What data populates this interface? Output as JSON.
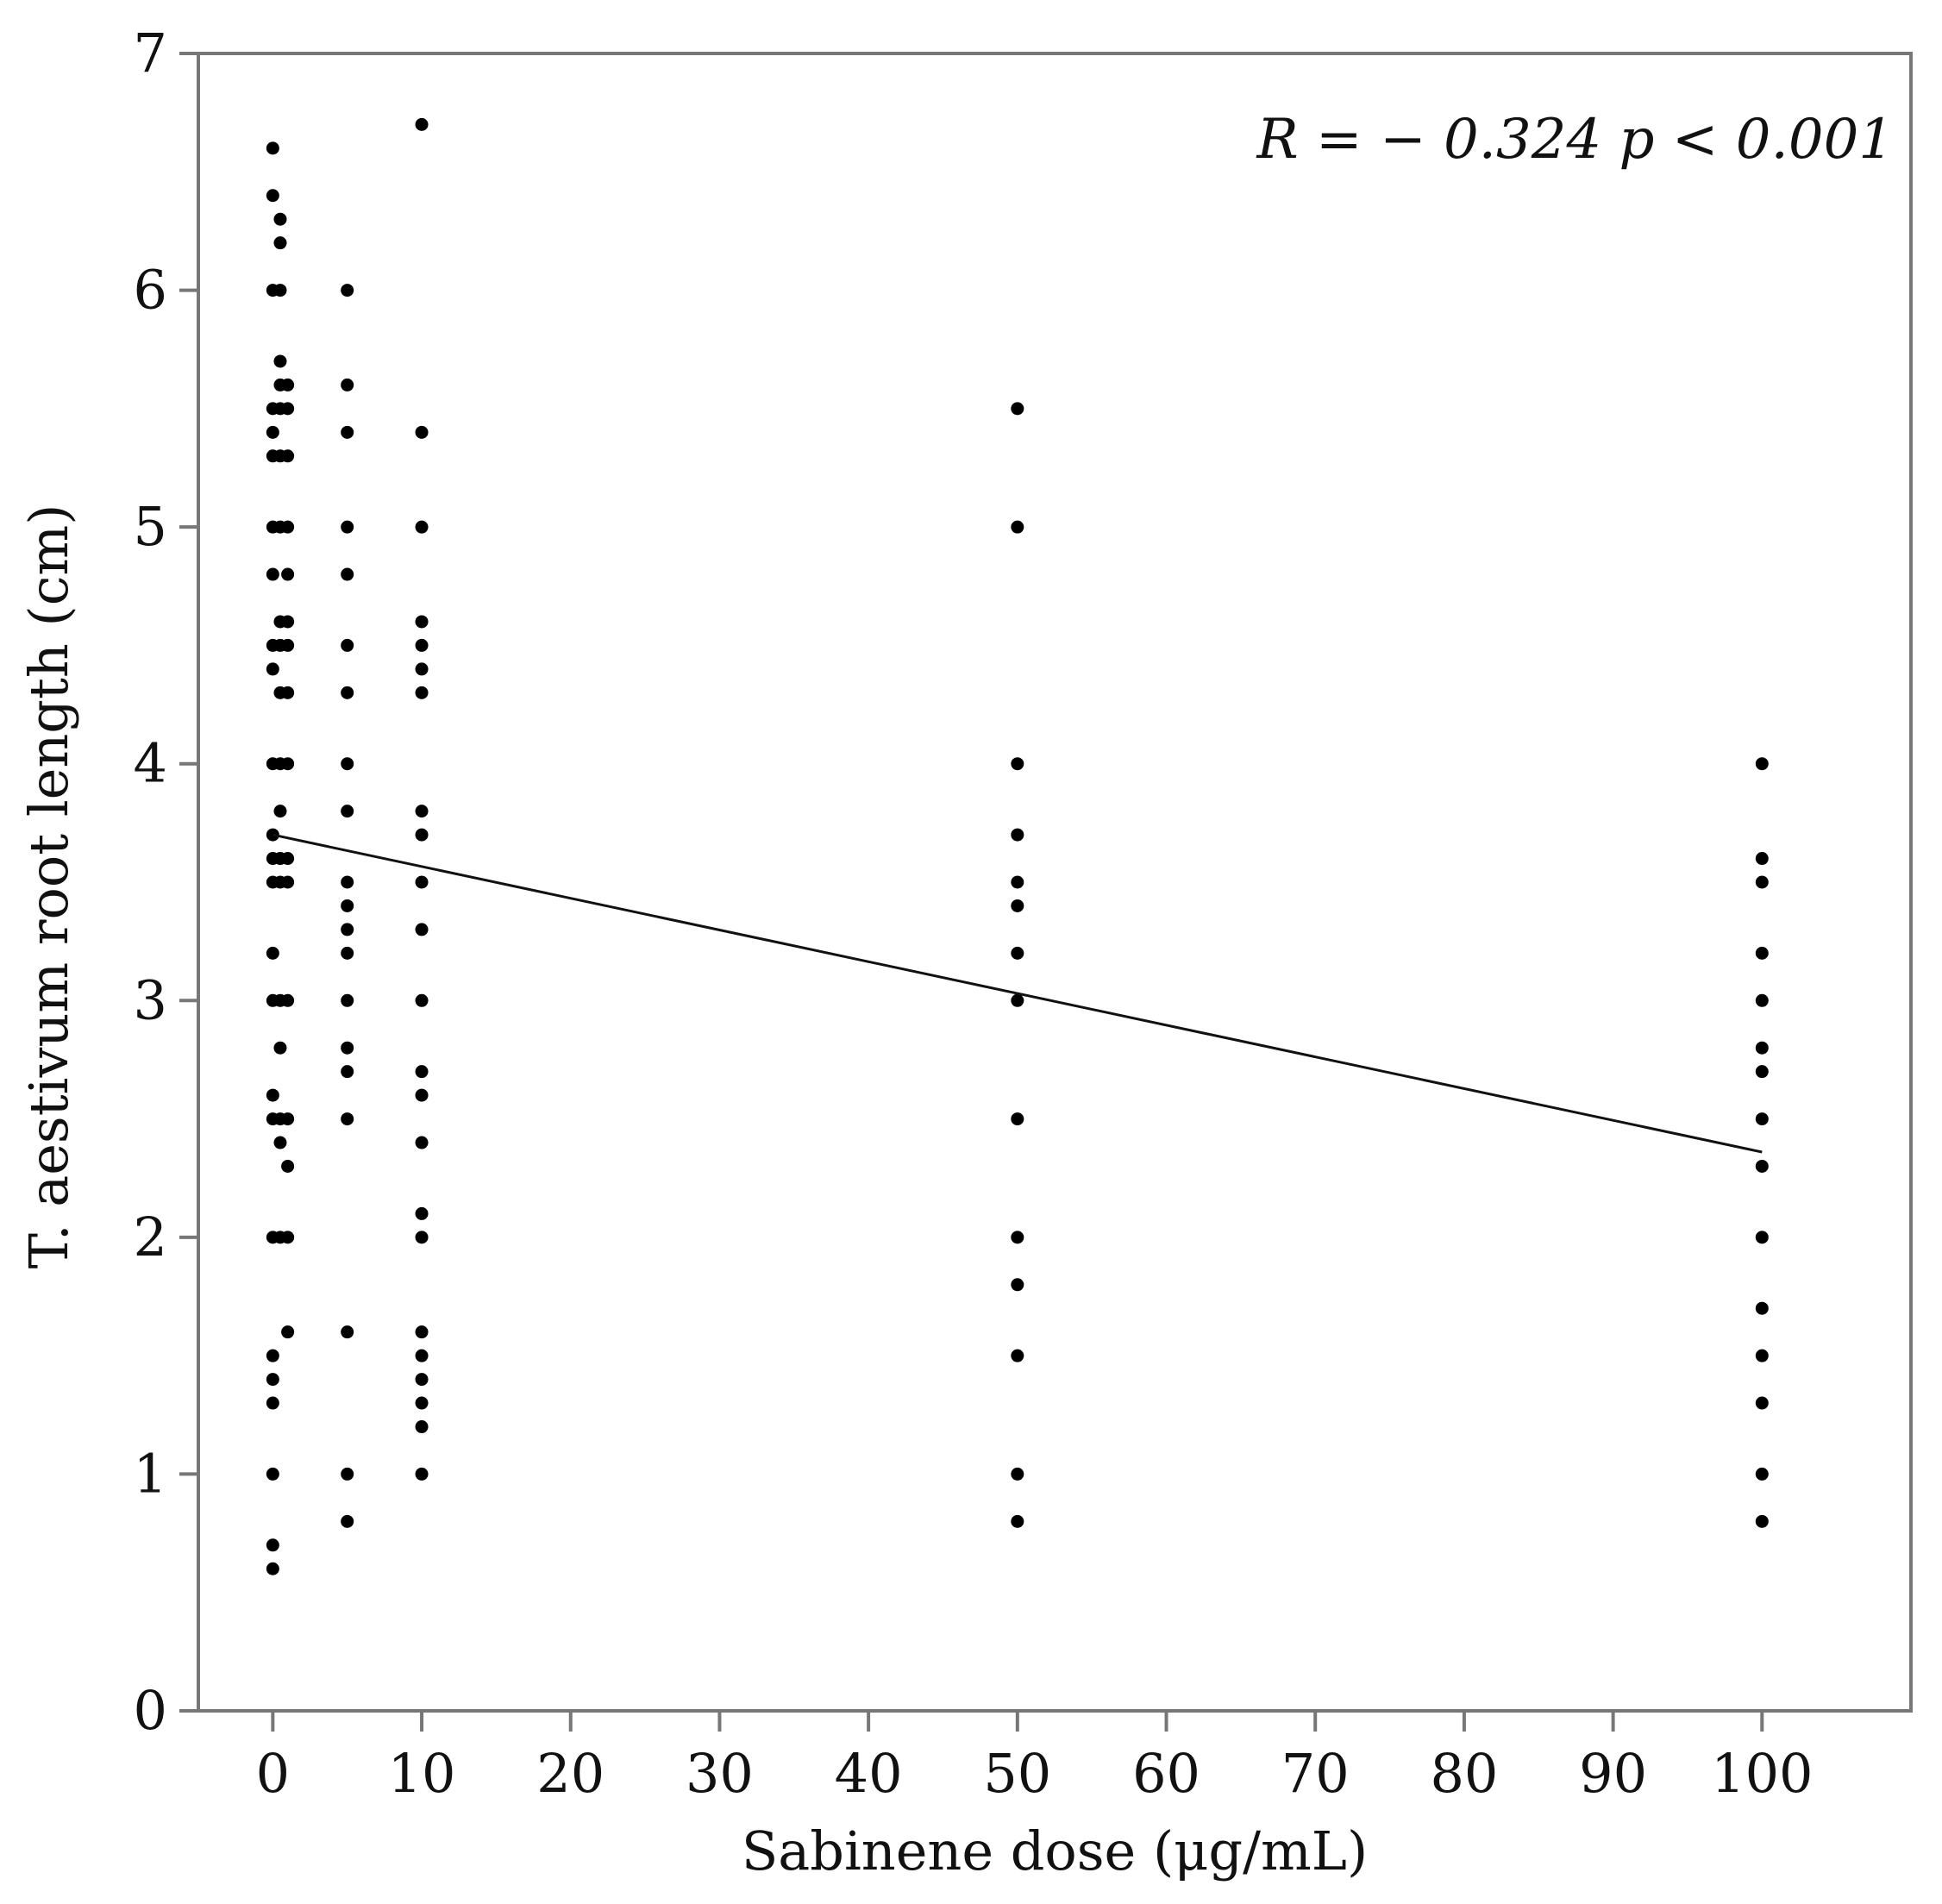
{
  "chart_data": {
    "type": "scatter",
    "title": "",
    "xlabel": "Sabinene dose (μg/mL)",
    "ylabel": "T. aestivum root length (cm)",
    "xlim": [
      -5,
      110
    ],
    "ylim": [
      0,
      7
    ],
    "xticks": [
      0,
      10,
      20,
      30,
      40,
      50,
      60,
      70,
      80,
      90,
      100
    ],
    "yticks": [
      0,
      1,
      2,
      3,
      4,
      5,
      6,
      7
    ],
    "annotation": "R = − 0.324  p < 0.001",
    "grid": false,
    "legend": "none",
    "point_color": "#000000",
    "regression_line": {
      "x": [
        0,
        100
      ],
      "y": [
        3.7,
        2.36
      ]
    },
    "points": [
      {
        "x": 0,
        "y": 6.6
      },
      {
        "x": 0,
        "y": 6.4
      },
      {
        "x": 0,
        "y": 6.0
      },
      {
        "x": 0,
        "y": 5.5
      },
      {
        "x": 0,
        "y": 5.4
      },
      {
        "x": 0,
        "y": 5.3
      },
      {
        "x": 0,
        "y": 5.0
      },
      {
        "x": 0,
        "y": 4.8
      },
      {
        "x": 0,
        "y": 4.5
      },
      {
        "x": 0,
        "y": 4.4
      },
      {
        "x": 0,
        "y": 4.0
      },
      {
        "x": 0,
        "y": 3.7
      },
      {
        "x": 0,
        "y": 3.6
      },
      {
        "x": 0,
        "y": 3.5
      },
      {
        "x": 0,
        "y": 3.2
      },
      {
        "x": 0,
        "y": 3.0
      },
      {
        "x": 0,
        "y": 2.6
      },
      {
        "x": 0,
        "y": 2.5
      },
      {
        "x": 0,
        "y": 2.0
      },
      {
        "x": 0,
        "y": 1.5
      },
      {
        "x": 0,
        "y": 1.4
      },
      {
        "x": 0,
        "y": 1.3
      },
      {
        "x": 0,
        "y": 1.0
      },
      {
        "x": 0,
        "y": 0.7
      },
      {
        "x": 0,
        "y": 0.6
      },
      {
        "x": 0.5,
        "y": 6.3
      },
      {
        "x": 0.5,
        "y": 6.2
      },
      {
        "x": 0.5,
        "y": 6.0
      },
      {
        "x": 0.5,
        "y": 5.7
      },
      {
        "x": 0.5,
        "y": 5.6
      },
      {
        "x": 0.5,
        "y": 5.5
      },
      {
        "x": 0.5,
        "y": 5.3
      },
      {
        "x": 0.5,
        "y": 5.0
      },
      {
        "x": 0.5,
        "y": 4.6
      },
      {
        "x": 0.5,
        "y": 4.5
      },
      {
        "x": 0.5,
        "y": 4.3
      },
      {
        "x": 0.5,
        "y": 4.0
      },
      {
        "x": 0.5,
        "y": 3.8
      },
      {
        "x": 0.5,
        "y": 3.6
      },
      {
        "x": 0.5,
        "y": 3.5
      },
      {
        "x": 0.5,
        "y": 3.0
      },
      {
        "x": 0.5,
        "y": 2.8
      },
      {
        "x": 0.5,
        "y": 2.5
      },
      {
        "x": 0.5,
        "y": 2.4
      },
      {
        "x": 0.5,
        "y": 2.0
      },
      {
        "x": 1,
        "y": 5.6
      },
      {
        "x": 1,
        "y": 5.5
      },
      {
        "x": 1,
        "y": 5.3
      },
      {
        "x": 1,
        "y": 5.0
      },
      {
        "x": 1,
        "y": 4.8
      },
      {
        "x": 1,
        "y": 4.6
      },
      {
        "x": 1,
        "y": 4.5
      },
      {
        "x": 1,
        "y": 4.3
      },
      {
        "x": 1,
        "y": 4.0
      },
      {
        "x": 1,
        "y": 3.6
      },
      {
        "x": 1,
        "y": 3.5
      },
      {
        "x": 1,
        "y": 3.0
      },
      {
        "x": 1,
        "y": 2.5
      },
      {
        "x": 1,
        "y": 2.3
      },
      {
        "x": 1,
        "y": 2.0
      },
      {
        "x": 1,
        "y": 1.6
      },
      {
        "x": 5,
        "y": 6.0
      },
      {
        "x": 5,
        "y": 5.6
      },
      {
        "x": 5,
        "y": 5.4
      },
      {
        "x": 5,
        "y": 5.0
      },
      {
        "x": 5,
        "y": 4.8
      },
      {
        "x": 5,
        "y": 4.5
      },
      {
        "x": 5,
        "y": 4.3
      },
      {
        "x": 5,
        "y": 4.0
      },
      {
        "x": 5,
        "y": 3.8
      },
      {
        "x": 5,
        "y": 3.5
      },
      {
        "x": 5,
        "y": 3.4
      },
      {
        "x": 5,
        "y": 3.3
      },
      {
        "x": 5,
        "y": 3.2
      },
      {
        "x": 5,
        "y": 3.0
      },
      {
        "x": 5,
        "y": 2.8
      },
      {
        "x": 5,
        "y": 2.7
      },
      {
        "x": 5,
        "y": 2.5
      },
      {
        "x": 5,
        "y": 1.6
      },
      {
        "x": 5,
        "y": 1.0
      },
      {
        "x": 5,
        "y": 0.8
      },
      {
        "x": 10,
        "y": 6.7
      },
      {
        "x": 10,
        "y": 5.4
      },
      {
        "x": 10,
        "y": 5.0
      },
      {
        "x": 10,
        "y": 4.6
      },
      {
        "x": 10,
        "y": 4.5
      },
      {
        "x": 10,
        "y": 4.4
      },
      {
        "x": 10,
        "y": 4.3
      },
      {
        "x": 10,
        "y": 3.8
      },
      {
        "x": 10,
        "y": 3.7
      },
      {
        "x": 10,
        "y": 3.5
      },
      {
        "x": 10,
        "y": 3.3
      },
      {
        "x": 10,
        "y": 3.0
      },
      {
        "x": 10,
        "y": 2.7
      },
      {
        "x": 10,
        "y": 2.6
      },
      {
        "x": 10,
        "y": 2.4
      },
      {
        "x": 10,
        "y": 2.1
      },
      {
        "x": 10,
        "y": 2.0
      },
      {
        "x": 10,
        "y": 1.6
      },
      {
        "x": 10,
        "y": 1.5
      },
      {
        "x": 10,
        "y": 1.4
      },
      {
        "x": 10,
        "y": 1.3
      },
      {
        "x": 10,
        "y": 1.2
      },
      {
        "x": 10,
        "y": 1.0
      },
      {
        "x": 50,
        "y": 5.5
      },
      {
        "x": 50,
        "y": 5.0
      },
      {
        "x": 50,
        "y": 4.0
      },
      {
        "x": 50,
        "y": 3.7
      },
      {
        "x": 50,
        "y": 3.5
      },
      {
        "x": 50,
        "y": 3.4
      },
      {
        "x": 50,
        "y": 3.2
      },
      {
        "x": 50,
        "y": 3.0
      },
      {
        "x": 50,
        "y": 2.5
      },
      {
        "x": 50,
        "y": 2.0
      },
      {
        "x": 50,
        "y": 1.8
      },
      {
        "x": 50,
        "y": 1.5
      },
      {
        "x": 50,
        "y": 1.0
      },
      {
        "x": 50,
        "y": 0.8
      },
      {
        "x": 100,
        "y": 4.0
      },
      {
        "x": 100,
        "y": 3.6
      },
      {
        "x": 100,
        "y": 3.5
      },
      {
        "x": 100,
        "y": 3.2
      },
      {
        "x": 100,
        "y": 3.0
      },
      {
        "x": 100,
        "y": 2.8
      },
      {
        "x": 100,
        "y": 2.7
      },
      {
        "x": 100,
        "y": 2.5
      },
      {
        "x": 100,
        "y": 2.3
      },
      {
        "x": 100,
        "y": 2.0
      },
      {
        "x": 100,
        "y": 1.7
      },
      {
        "x": 100,
        "y": 1.5
      },
      {
        "x": 100,
        "y": 1.3
      },
      {
        "x": 100,
        "y": 1.0
      },
      {
        "x": 100,
        "y": 0.8
      }
    ]
  }
}
